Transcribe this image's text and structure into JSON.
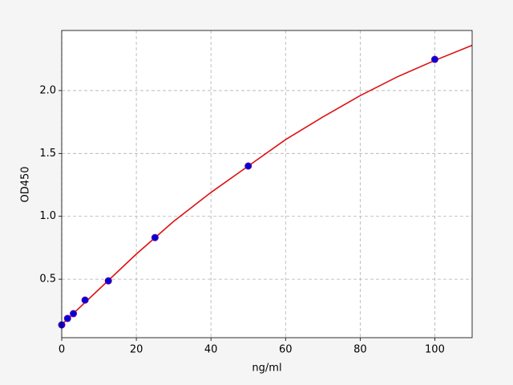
{
  "chart_data": {
    "type": "scatter",
    "x_label": "ng/ml",
    "y_label": "OD450",
    "xlim": [
      0,
      110
    ],
    "ylim": [
      0.035,
      2.478
    ],
    "xticks": [
      0,
      20,
      40,
      60,
      80,
      100
    ],
    "yticks": [
      0.5,
      {
        "value": 1.0,
        "label": "1.0"
      },
      1.5,
      {
        "value": 2.0,
        "label": "2.0"
      }
    ],
    "grid": true,
    "series": [
      {
        "type": "line",
        "color": "#dd1111",
        "x": [
          0,
          10,
          20,
          30,
          40,
          50,
          60,
          70,
          80,
          90,
          100,
          110
        ],
        "values": [
          0.14,
          0.42,
          0.7,
          0.96,
          1.19,
          1.4,
          1.61,
          1.79,
          1.96,
          2.11,
          2.24,
          2.36
        ]
      },
      {
        "type": "scatter",
        "color": "#0000dd",
        "x": [
          0,
          1.5625,
          3.125,
          6.25,
          12.5,
          25,
          50,
          100
        ],
        "values": [
          0.137,
          0.188,
          0.226,
          0.334,
          0.487,
          0.831,
          1.4,
          2.248
        ]
      }
    ]
  }
}
